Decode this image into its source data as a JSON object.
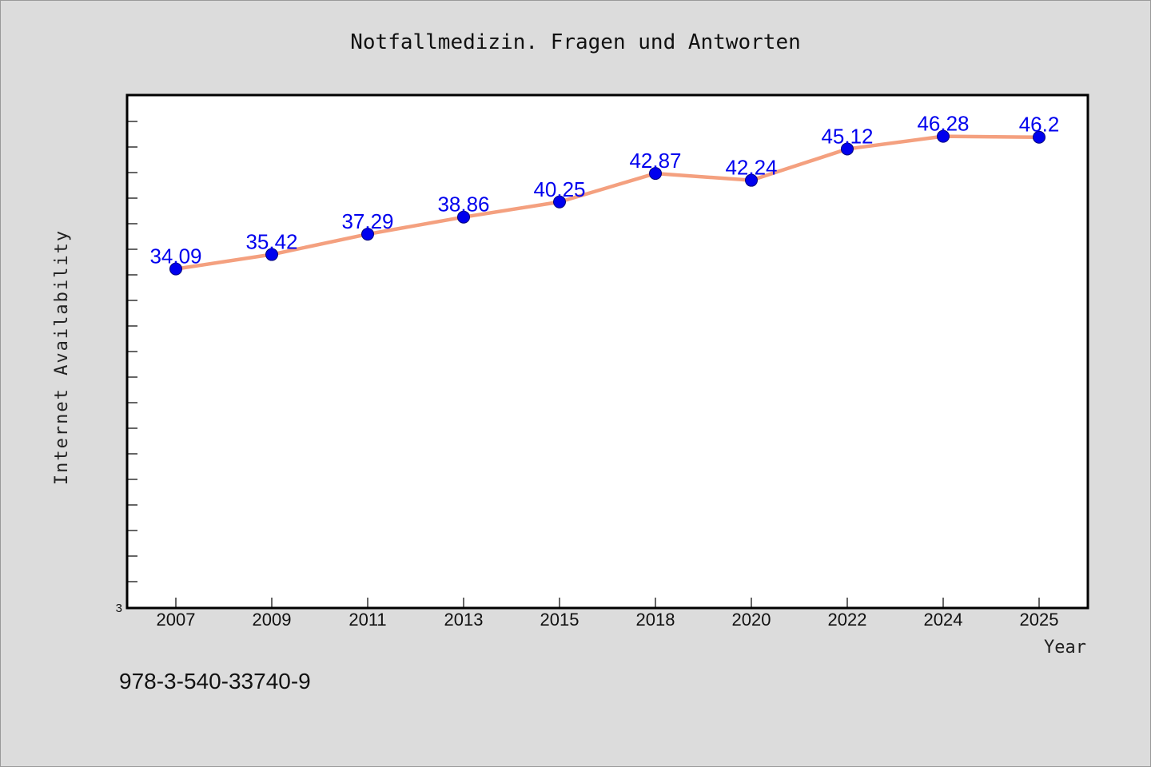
{
  "chart_data": {
    "type": "line",
    "title": "Notfallmedizin. Fragen und Antworten",
    "xlabel": "Year",
    "ylabel": "Internet Availability",
    "categories": [
      "2007",
      "2009",
      "2011",
      "2013",
      "2015",
      "2018",
      "2020",
      "2022",
      "2024",
      "2025"
    ],
    "series": [
      {
        "values": [
          34.09,
          35.42,
          37.29,
          38.86,
          40.25,
          42.87,
          42.24,
          45.12,
          46.28,
          46.2
        ]
      }
    ],
    "data_labels": [
      "34.09",
      "35.42",
      "37.29",
      "38.86",
      "40.25",
      "42.87",
      "42.24",
      "45.12",
      "46.28",
      "46.2"
    ],
    "y_tick_labels": [
      "3"
    ],
    "ylim": [
      3,
      50
    ],
    "grid": false,
    "colors": {
      "line": "#f4a07f",
      "marker": "#0000ee",
      "data_label": "#0000ee",
      "plot_background": "#ffffff",
      "page_background": "#dcdcdc"
    }
  },
  "footnote": "978-3-540-33740-9"
}
